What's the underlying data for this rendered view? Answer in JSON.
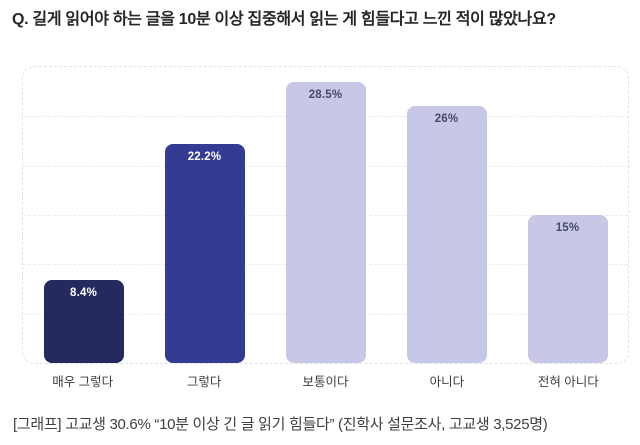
{
  "page": {
    "title": "Q. 길게 읽어야 하는 글을 10분 이상 집중해서 읽는 게 힘들다고 느낀 적이 많았나요?",
    "caption": "[그래프] 고교생 30.6% “10분 이상 긴 글 읽기 힘들다” (진학사 설문조사, 고교생 3,525명)"
  },
  "chart_data": {
    "type": "bar",
    "title": "Q. 길게 읽어야 하는 글을 10분 이상 집중해서 읽는 게 힘들다고 느낀 적이 많았나요?",
    "categories": [
      "매우 그렇다",
      "그렇다",
      "보통이다",
      "아니다",
      "전혀 아니다"
    ],
    "values": [
      8.4,
      22.2,
      28.5,
      26,
      15
    ],
    "value_labels": [
      "8.4%",
      "22.2%",
      "28.5%",
      "26%",
      "15%"
    ],
    "bar_colors": [
      "#252a5e",
      "#333b92",
      "#c6c8e5",
      "#c6c8e5",
      "#c6c8e5"
    ],
    "value_label_colors": [
      "#ffffff",
      "#ffffff",
      "#464a64",
      "#464a64",
      "#464a64"
    ],
    "xlabel": "",
    "ylabel": "",
    "ylim": [
      0,
      30
    ],
    "gridline_step": 5,
    "grid": "horizontal-dashed",
    "legend": "none",
    "annotation": "[그래프] 고교생 30.6% “10분 이상 긴 글 읽기 힘들다” (진학사 설문조사, 고교생 3,525명)"
  }
}
